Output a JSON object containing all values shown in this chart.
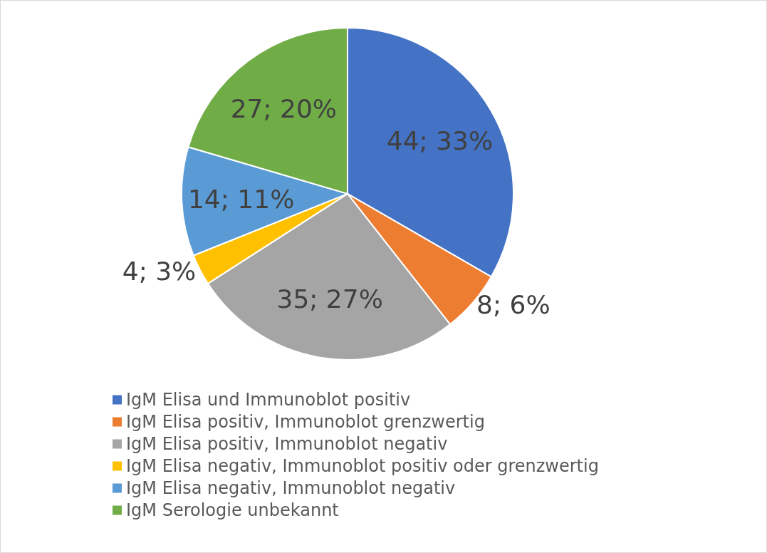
{
  "chart_data": {
    "type": "pie",
    "categories": [
      "IgM Elisa und Immunoblot positiv",
      "IgM Elisa positiv, Immunoblot grenzwertig",
      "IgM Elisa positiv, Immunoblot negativ",
      "IgM Elisa negativ, Immunoblot positiv oder grenzwertig",
      "IgM Elisa negativ, Immunoblot negativ",
      "IgM Serologie unbekannt"
    ],
    "values": [
      44,
      8,
      35,
      4,
      14,
      27
    ],
    "value_labels": [
      "44; 33%",
      "8; 6%",
      "35; 27%",
      "4; 3%",
      "14; 11%",
      "27; 20%"
    ],
    "colors": [
      "#4472c4",
      "#ed7d31",
      "#a5a5a5",
      "#ffc000",
      "#5b9bd5",
      "#70ad47"
    ],
    "legend": "bottom"
  }
}
